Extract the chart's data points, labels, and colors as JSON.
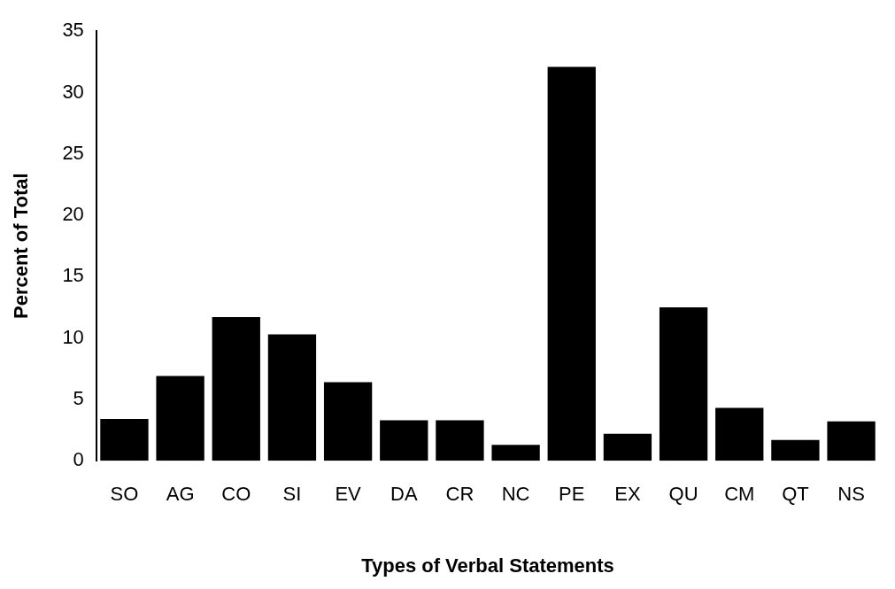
{
  "chart_data": {
    "type": "bar",
    "xlabel": "Types of Verbal Statements",
    "ylabel": "Percent of Total",
    "categories": [
      "SO",
      "AG",
      "CO",
      "SI",
      "EV",
      "DA",
      "CR",
      "NC",
      "PE",
      "EX",
      "QU",
      "CM",
      "QT",
      "NS"
    ],
    "values": [
      3.4,
      6.9,
      11.7,
      10.3,
      6.4,
      3.3,
      3.3,
      1.3,
      32.1,
      2.2,
      12.5,
      4.3,
      1.7,
      3.2
    ],
    "color": "#000000",
    "ylim": [
      0,
      35
    ],
    "yticks": [
      0,
      5,
      10,
      15,
      20,
      25,
      30,
      35
    ],
    "grid": false,
    "legend": false
  }
}
